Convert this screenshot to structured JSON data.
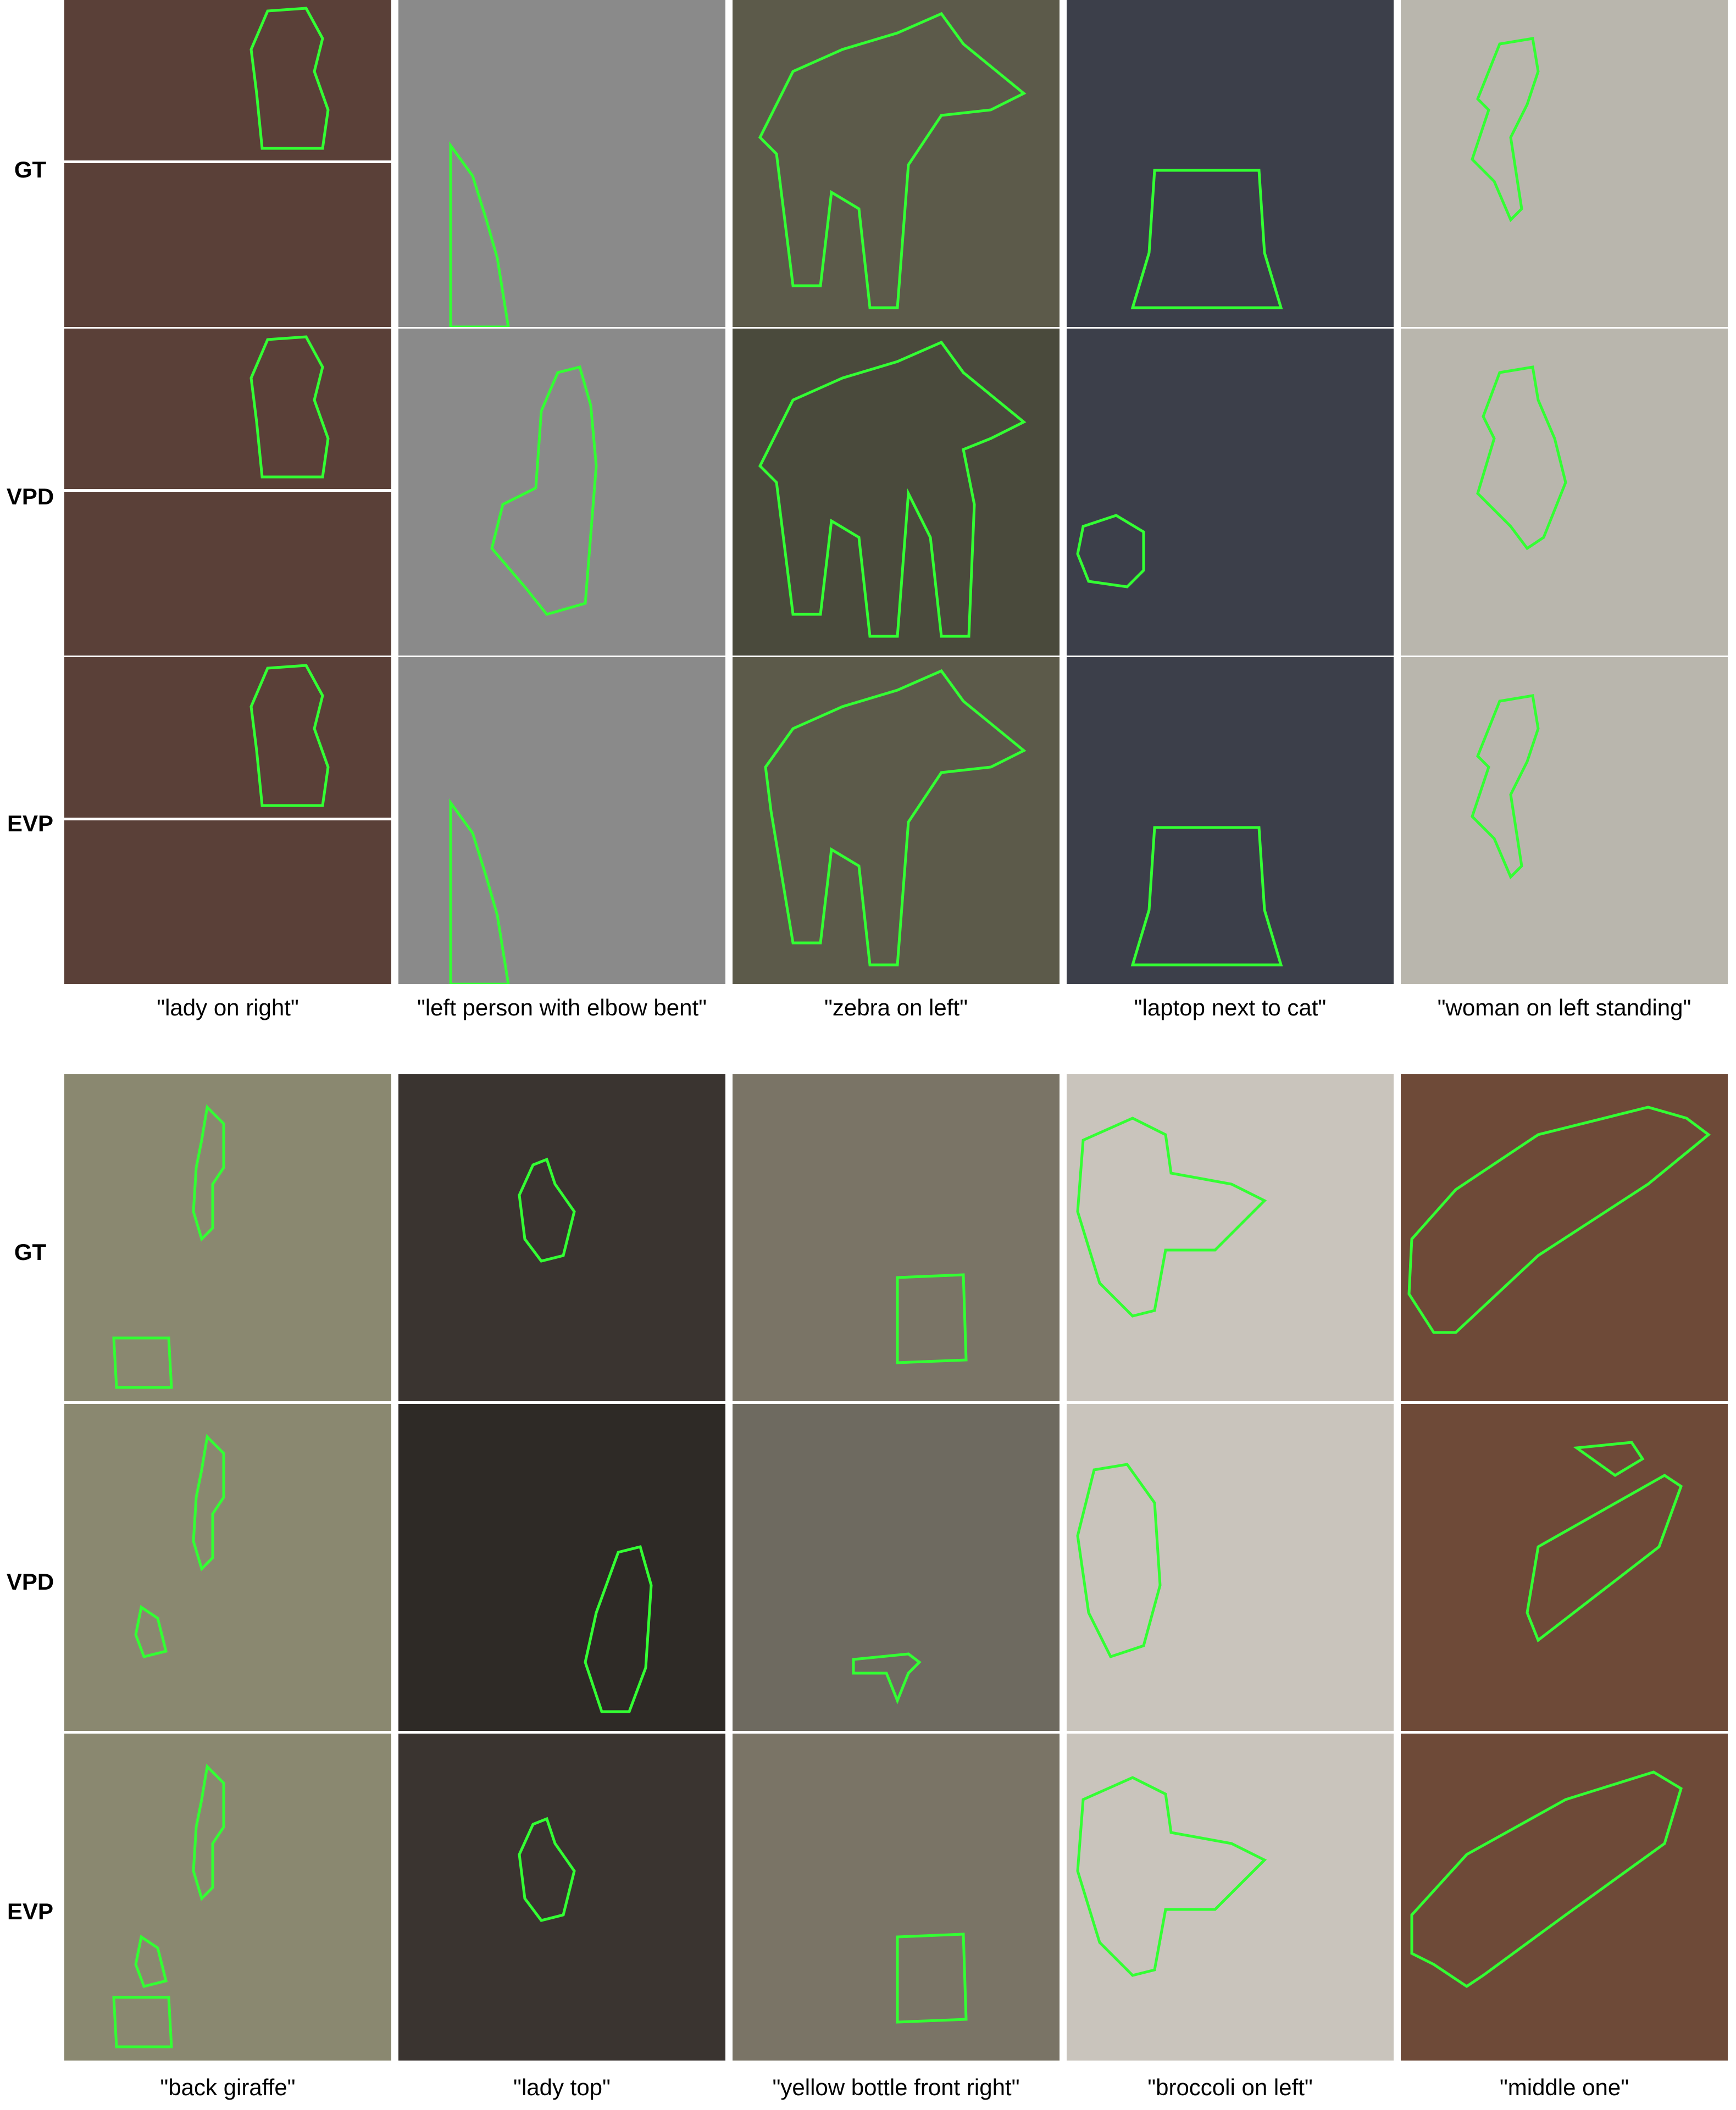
{
  "colors": {
    "mask_outline": "#33ff33",
    "background": "#ffffff"
  },
  "top_block": {
    "row_labels": [
      "GT",
      "VPD",
      "EVP"
    ],
    "captions": [
      "\"lady on right\"",
      "\"left person with elbow bent\"",
      "\"zebra on left\"",
      "\"laptop next to cat\"",
      "\"woman on left standing\""
    ],
    "scenes": [
      "wii-players-photo",
      "girl-brushing-teeth-photo",
      "zebras-photo",
      "laptop-and-cat-photo",
      "vintage-beach-women-photo"
    ]
  },
  "bottom_block": {
    "row_labels": [
      "GT",
      "VPD",
      "EVP"
    ],
    "captions": [
      "\"back giraffe\"",
      "\"lady top\"",
      "\"yellow bottle front right\"",
      "\"broccoli on left\"",
      "\"middle one\""
    ],
    "scenes": [
      "giraffes-and-men-photo",
      "dark-kitchen-women-photo",
      "flower-vase-jars-photo",
      "broccoli-plate-photo",
      "hot-dogs-photo"
    ]
  }
}
